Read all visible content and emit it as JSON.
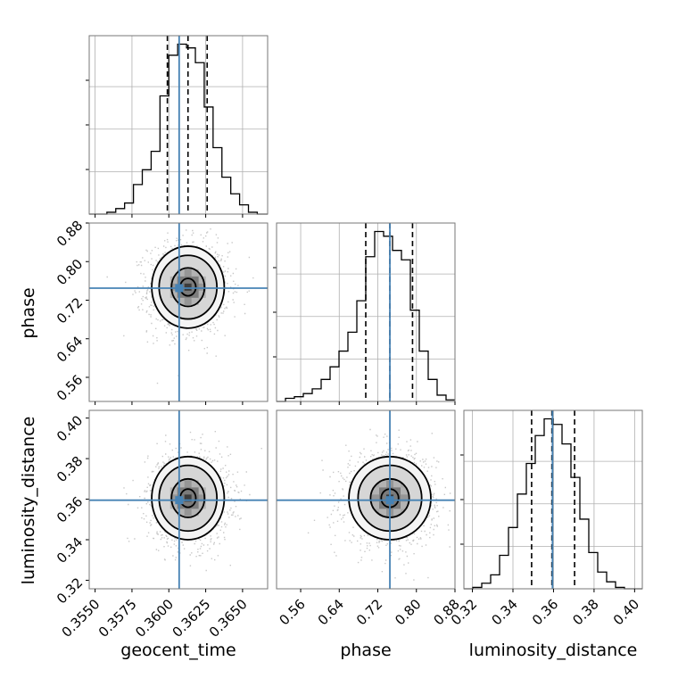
{
  "chart_data": {
    "type": "corner",
    "parameters": [
      "geocent_time",
      "phase",
      "luminosity_distance"
    ],
    "colors": {
      "truth": "#4682b4",
      "hist": "#000000",
      "quantile": "#000000",
      "points": "#9a9a9a"
    },
    "panels": {
      "geocent_time": {
        "xlim": [
          0.3546,
          0.3667
        ],
        "xticks": [
          0.355,
          0.3575,
          0.36,
          0.3625,
          0.365
        ],
        "xtick_labels": [
          "0.3550",
          "0.3575",
          "0.3600",
          "0.3625",
          "0.3650"
        ],
        "truth": 0.3607,
        "quantiles": [
          0.3599,
          0.3613,
          0.3626
        ],
        "hist_bin_edges": [
          0.3546,
          0.3552,
          0.3558,
          0.3564,
          0.357,
          0.3576,
          0.3582,
          0.3588,
          0.3594,
          0.36,
          0.3606,
          0.3612,
          0.3618,
          0.3624,
          0.363,
          0.3636,
          0.3642,
          0.3648,
          0.3654,
          0.366,
          0.3667
        ],
        "hist_counts": [
          0,
          0,
          1,
          3,
          6,
          16,
          24,
          34,
          64,
          86,
          92,
          90,
          82,
          58,
          36,
          20,
          11,
          5,
          1,
          0
        ]
      },
      "phase": {
        "xlim": [
          0.51,
          0.88
        ],
        "xticks": [
          0.56,
          0.64,
          0.72,
          0.8,
          0.88
        ],
        "xtick_labels": [
          "0.56",
          "0.64",
          "0.72",
          "0.80",
          "0.88"
        ],
        "ylim": [
          0.51,
          0.88
        ],
        "yticks": [
          0.56,
          0.64,
          0.72,
          0.8,
          0.88
        ],
        "ytick_labels": [
          "0.56",
          "0.64",
          "0.72",
          "0.80",
          "0.88"
        ],
        "truth": 0.745,
        "quantiles": [
          0.695,
          0.745,
          0.792
        ],
        "hist_bin_edges": [
          0.51,
          0.5285,
          0.547,
          0.5655,
          0.584,
          0.6025,
          0.621,
          0.6395,
          0.658,
          0.6765,
          0.695,
          0.7135,
          0.732,
          0.7505,
          0.769,
          0.7875,
          0.806,
          0.8245,
          0.843,
          0.8615,
          0.88
        ],
        "hist_counts": [
          0,
          2,
          3,
          5,
          8,
          14,
          22,
          32,
          44,
          64,
          92,
          108,
          105,
          96,
          90,
          58,
          32,
          14,
          4,
          1
        ]
      },
      "luminosity_distance": {
        "xlim": [
          0.3158,
          0.4038
        ],
        "xticks": [
          0.32,
          0.34,
          0.36,
          0.38,
          0.4
        ],
        "xtick_labels": [
          "0.32",
          "0.34",
          "0.36",
          "0.38",
          "0.40"
        ],
        "ylim": [
          0.3158,
          0.4038
        ],
        "yticks": [
          0.32,
          0.34,
          0.36,
          0.38,
          0.4
        ],
        "ytick_labels": [
          "0.32",
          "0.34",
          "0.36",
          "0.38",
          "0.40"
        ],
        "truth": 0.3595,
        "quantiles": [
          0.3492,
          0.3592,
          0.3704
        ],
        "hist_bin_edges": [
          0.3158,
          0.3202,
          0.3246,
          0.329,
          0.3334,
          0.3378,
          0.3422,
          0.3466,
          0.351,
          0.3554,
          0.3598,
          0.3642,
          0.3686,
          0.373,
          0.3774,
          0.3818,
          0.3862,
          0.3906,
          0.395,
          0.3994,
          0.4038
        ],
        "hist_counts": [
          0,
          1,
          4,
          10,
          24,
          44,
          68,
          90,
          110,
          122,
          118,
          104,
          80,
          50,
          26,
          12,
          5,
          1,
          0,
          0
        ]
      }
    },
    "axis_labels": {
      "x": [
        "geocent_time",
        "phase",
        "luminosity_distance"
      ],
      "y": [
        "phase",
        "luminosity_distance"
      ]
    },
    "contours": {
      "phase_vs_geocent_time": {
        "center": [
          0.3613,
          0.747
        ],
        "levels_radii": [
          [
            0.00053,
            0.018
          ],
          [
            0.00112,
            0.04
          ],
          [
            0.00196,
            0.066
          ],
          [
            0.00246,
            0.085
          ]
        ]
      },
      "luminosity_distance_vs_geocent_time": {
        "center": [
          0.3613,
          0.3605
        ],
        "levels_radii": [
          [
            0.00053,
            0.0045
          ],
          [
            0.00112,
            0.0095
          ],
          [
            0.00196,
            0.0162
          ],
          [
            0.00246,
            0.0205
          ]
        ]
      },
      "luminosity_distance_vs_phase": {
        "center": [
          0.745,
          0.3605
        ],
        "levels_radii": [
          [
            0.018,
            0.0045
          ],
          [
            0.04,
            0.0095
          ],
          [
            0.066,
            0.0162
          ],
          [
            0.085,
            0.0205
          ]
        ]
      }
    }
  }
}
